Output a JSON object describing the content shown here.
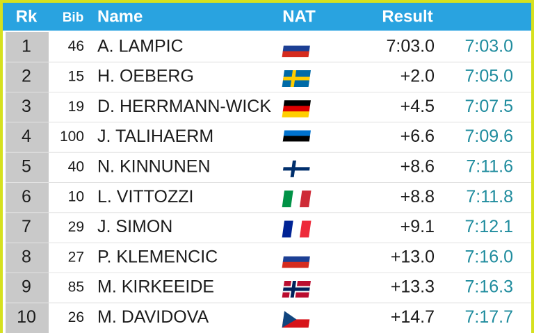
{
  "header": {
    "rank": "Rk",
    "bib": "Bib",
    "name": "Name",
    "nat": "NAT",
    "result": "Result"
  },
  "rows": [
    [
      1,
      46,
      "A. LAMPIC",
      "7:03.0",
      "7:03.0"
    ],
    [
      2,
      15,
      "H. OEBERG",
      "+2.0",
      "7:05.0"
    ],
    [
      3,
      19,
      "D. HERRMANN-WICK",
      "+4.5",
      "7:07.5"
    ],
    [
      4,
      100,
      "J. TALIHAERM",
      "+6.6",
      "7:09.6"
    ],
    [
      5,
      40,
      "N. KINNUNEN",
      "+8.6",
      "7:11.6"
    ],
    [
      6,
      10,
      "L. VITTOZZI",
      "+8.8",
      "7:11.8"
    ],
    [
      7,
      29,
      "J. SIMON",
      "+9.1",
      "7:12.1"
    ],
    [
      8,
      27,
      "P. KLEMENCIC",
      "+13.0",
      "7:16.0"
    ],
    [
      9,
      85,
      "M. KIRKEEIDE",
      "+13.3",
      "7:16.3"
    ],
    [
      10,
      26,
      "M. DAVIDOVA",
      "+14.7",
      "7:17.7"
    ]
  ]
}
